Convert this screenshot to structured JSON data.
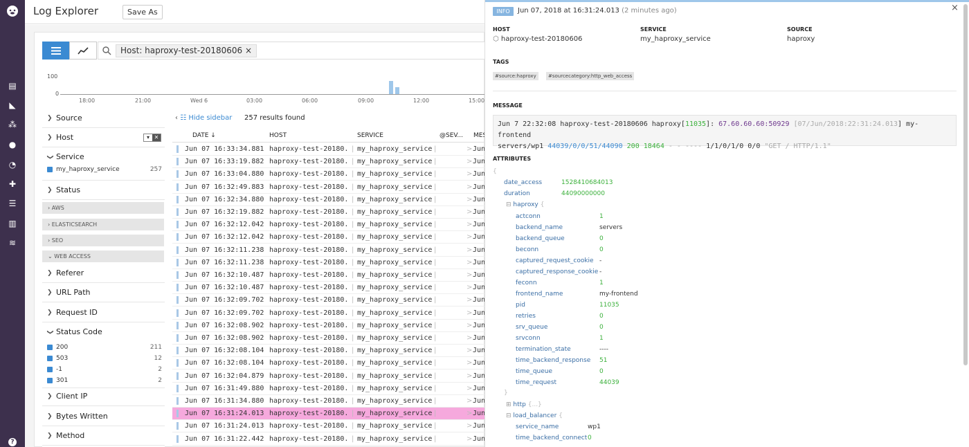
{
  "nav": {
    "icons": [
      "dog-logo-icon",
      "dashboard-icon",
      "metrics-icon",
      "infrastructure-icon",
      "monitors-icon",
      "apm-icon",
      "integrations-icon",
      "notebooks-icon",
      "logs-icon",
      "help-icon"
    ],
    "help": "?"
  },
  "header": {
    "title": "Log Explorer",
    "save_as": "Save As"
  },
  "search": {
    "chip": "Host: haproxy-test-20180606",
    "chip_close": "×"
  },
  "histogram": {
    "y_labels": [
      "100",
      "0"
    ],
    "x_labels": [
      "18:00",
      "21:00",
      "Wed 6",
      "03:00",
      "06:00",
      "09:00",
      "12:00",
      "15:00"
    ],
    "spike_fractions": [
      0.55,
      0.3
    ]
  },
  "facets": {
    "source": "Source",
    "host": "Host",
    "filter_icons": [
      "▾",
      "✕"
    ],
    "service": "Service",
    "service_value": "my_haproxy_service",
    "service_count": "257",
    "status": "Status",
    "groups": [
      "AWS",
      "ELASTICSEARCH",
      "SEO",
      "WEB ACCESS"
    ],
    "referer": "Referer",
    "url_path": "URL Path",
    "request_id": "Request ID",
    "status_code": "Status Code",
    "status_codes": [
      {
        "v": "200",
        "c": "211"
      },
      {
        "v": "503",
        "c": "12"
      },
      {
        "v": "-1",
        "c": "2"
      },
      {
        "v": "301",
        "c": "2"
      }
    ],
    "client_ip": "Client IP",
    "bytes_written": "Bytes Written",
    "method": "Method"
  },
  "results": {
    "hide_sidebar": "Hide sidebar",
    "count": "257 results found"
  },
  "table": {
    "headers": {
      "date": "DATE ↓",
      "host": "HOST",
      "service": "SERVICE",
      "sev": "@SEV...",
      "msg": "MES"
    },
    "host_value": "haproxy-test-20180...",
    "service_value": "my_haproxy_service",
    "msg_value": "Jun",
    "dates": [
      "Jun 07 16:33:34.881",
      "Jun 07 16:33:19.882",
      "Jun 07 16:33:04.880",
      "Jun 07 16:32:49.883",
      "Jun 07 16:32:34.880",
      "Jun 07 16:32:19.882",
      "Jun 07 16:32:12.042",
      "Jun 07 16:32:12.042",
      "Jun 07 16:32:11.238",
      "Jun 07 16:32:11.238",
      "Jun 07 16:32:10.487",
      "Jun 07 16:32:10.487",
      "Jun 07 16:32:09.702",
      "Jun 07 16:32:09.702",
      "Jun 07 16:32:08.902",
      "Jun 07 16:32:08.902",
      "Jun 07 16:32:08.104",
      "Jun 07 16:32:08.104",
      "Jun 07 16:32:04.879",
      "Jun 07 16:31:49.880",
      "Jun 07 16:31:34.880",
      "Jun 07 16:31:24.013",
      "Jun 07 16:31:24.013",
      "Jun 07 16:31:22.442"
    ],
    "selected_index": 21,
    "selected_color": "#f6a9dd"
  },
  "detail": {
    "level": "INFO",
    "timestamp": "Jun 07, 2018 at 16:31:24.013",
    "ago": "(2 minutes ago)",
    "close": "×",
    "host_label": "HOST",
    "host": "haproxy-test-20180606",
    "service_label": "SERVICE",
    "service": "my_haproxy_service",
    "source_label": "SOURCE",
    "source": "haproxy",
    "tags_label": "TAGS",
    "tags": [
      "#source:haproxy",
      "#sourcecategory:http_web_access"
    ],
    "message_label": "MESSAGE",
    "message": {
      "p1": "Jun  7 22:32:08 haproxy-test-20180606 haproxy[",
      "pid": "11035",
      "p2": "]: ",
      "ip": "67.60.60.60:50929",
      "p3": " [",
      "ts": "07/Jun/2018:22:31:24.013",
      "p4": "] my-frontend",
      "p5": "servers/wp1 ",
      "timing": "44039/0/0/51/44090",
      "p6": " ",
      "status": "200",
      "p7": " ",
      "bytes": "18464",
      "p8": " - - ---- ",
      "conn": "1/1/0/1/0 0/0",
      "p9": " \"GET / HTTP/1.1\""
    },
    "attributes_label": "ATTRIBUTES",
    "date_access": "1528410684013",
    "duration": "44090000000",
    "haproxy": [
      {
        "k": "actconn",
        "v": "1",
        "t": "n"
      },
      {
        "k": "backend_name",
        "v": "servers",
        "t": "s"
      },
      {
        "k": "backend_queue",
        "v": "0",
        "t": "n"
      },
      {
        "k": "beconn",
        "v": "0",
        "t": "n"
      },
      {
        "k": "captured_request_cookie",
        "v": "-",
        "t": "s"
      },
      {
        "k": "captured_response_cookie",
        "v": "-",
        "t": "s"
      },
      {
        "k": "feconn",
        "v": "1",
        "t": "n"
      },
      {
        "k": "frontend_name",
        "v": "my-frontend",
        "t": "s"
      },
      {
        "k": "pid",
        "v": "11035",
        "t": "n"
      },
      {
        "k": "retries",
        "v": "0",
        "t": "n"
      },
      {
        "k": "srv_queue",
        "v": "0",
        "t": "n"
      },
      {
        "k": "srvconn",
        "v": "1",
        "t": "n"
      },
      {
        "k": "termination_state",
        "v": "----",
        "t": "s"
      },
      {
        "k": "time_backend_response",
        "v": "51",
        "t": "n"
      },
      {
        "k": "time_queue",
        "v": "0",
        "t": "n"
      },
      {
        "k": "time_request",
        "v": "44039",
        "t": "n"
      }
    ],
    "http_collapsed": "{...}",
    "service_name": "wp1",
    "time_backend_connect": "0"
  }
}
